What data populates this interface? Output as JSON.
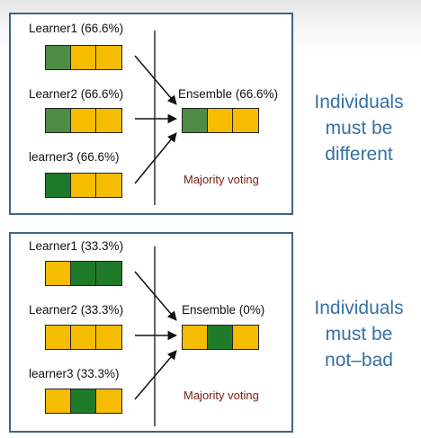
{
  "panels": [
    {
      "learners": [
        "Learner1 (66.6%)",
        "Learner2 (66.6%)",
        "learner3 (66.6%)"
      ],
      "ensemble": "Ensemble (66.6%)",
      "voting": "Majority voting",
      "message": [
        "Individuals",
        "must be",
        "different"
      ]
    },
    {
      "learners": [
        "Learner1 (33.3%)",
        "Learner2 (33.3%)",
        "learner3 (33.3%)"
      ],
      "ensemble": "Ensemble (0%)",
      "voting": "Majority voting",
      "message": [
        "Individuals",
        "must be",
        "not–bad"
      ]
    }
  ],
  "colors": {
    "border": "#3e6585",
    "correct_green": "#4d8c43",
    "correct_green_dark": "#1f7a2a",
    "wrong_yellow": "#f5bc00",
    "message_blue": "#3670a3",
    "voting_red": "#7a1d12"
  }
}
